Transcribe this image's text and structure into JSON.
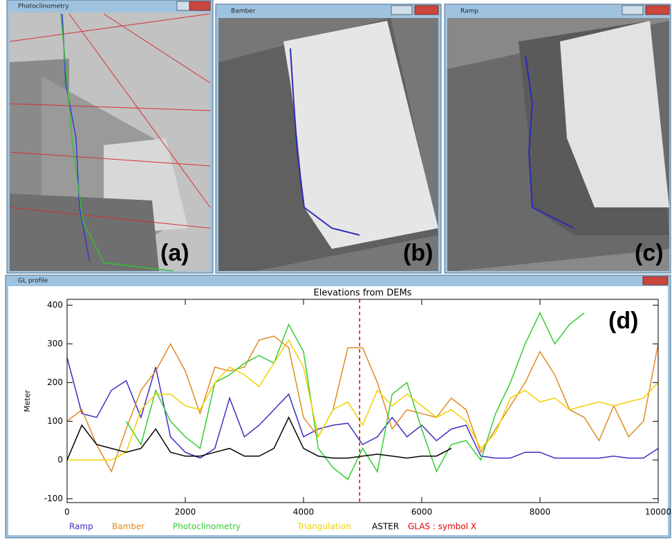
{
  "windows": [
    {
      "title": "Photoclinometry",
      "label": "(a)"
    },
    {
      "title": "Bamber",
      "label": "(b)"
    },
    {
      "title": "Ramp",
      "label": "(c)"
    },
    {
      "title": "GL profile"
    }
  ],
  "chart_data": {
    "type": "line",
    "title": "Elevations from DEMs",
    "y_label": "Meter",
    "panel_label": "(d)",
    "x": [
      0,
      250,
      500,
      750,
      1000,
      1250,
      1500,
      1750,
      2000,
      2250,
      2500,
      2750,
      3000,
      3250,
      3500,
      3750,
      4000,
      4250,
      4500,
      4750,
      5000,
      5250,
      5500,
      5750,
      6000,
      6250,
      6500,
      6750,
      7000,
      7250,
      7500,
      7750,
      8000,
      8250,
      8500,
      8750,
      9000,
      9250,
      9500,
      9750,
      10000
    ],
    "xlim": [
      0,
      10000
    ],
    "xticks": [
      0,
      2000,
      4000,
      6000,
      8000,
      10000
    ],
    "ylim": [
      -110,
      415
    ],
    "yticks": [
      -100,
      0,
      100,
      200,
      300,
      400
    ],
    "reference_line": {
      "x": 4950,
      "color": "#e00000"
    },
    "series": [
      {
        "name": "Ramp",
        "color": "#3b2fc0",
        "values": [
          265,
          120,
          110,
          180,
          205,
          110,
          240,
          60,
          20,
          5,
          30,
          160,
          60,
          90,
          130,
          170,
          60,
          80,
          90,
          95,
          40,
          60,
          110,
          60,
          90,
          50,
          80,
          90,
          10,
          5,
          5,
          20,
          20,
          5,
          5,
          5,
          5,
          10,
          5,
          5,
          30
        ]
      },
      {
        "name": "Bamber",
        "color": "#e08a1e",
        "values": [
          100,
          130,
          40,
          -30,
          80,
          180,
          230,
          300,
          230,
          120,
          240,
          230,
          240,
          310,
          320,
          290,
          110,
          60,
          130,
          290,
          290,
          200,
          80,
          130,
          120,
          110,
          160,
          130,
          20,
          80,
          140,
          200,
          280,
          220,
          130,
          110,
          50,
          140,
          60,
          100,
          300
        ]
      },
      {
        "name": "Photoclinometry",
        "color": "#33cc33",
        "values": [
          null,
          null,
          null,
          null,
          100,
          40,
          180,
          100,
          60,
          30,
          200,
          220,
          250,
          270,
          250,
          350,
          280,
          30,
          -20,
          -50,
          30,
          -30,
          170,
          200,
          80,
          -30,
          40,
          50,
          0,
          120,
          200,
          300,
          380,
          300,
          350,
          380,
          null,
          null,
          null,
          null,
          null
        ]
      },
      {
        "name": "Triangulation",
        "color": "#f0d000",
        "values": [
          0,
          0,
          0,
          0,
          20,
          130,
          170,
          170,
          140,
          130,
          200,
          240,
          220,
          190,
          250,
          310,
          240,
          60,
          130,
          150,
          90,
          180,
          140,
          170,
          140,
          110,
          130,
          100,
          30,
          70,
          160,
          180,
          150,
          160,
          130,
          140,
          150,
          140,
          150,
          160,
          200
        ]
      },
      {
        "name": "ASTER",
        "color": "#000000",
        "values": [
          0,
          90,
          40,
          30,
          20,
          30,
          80,
          20,
          10,
          10,
          20,
          30,
          10,
          10,
          30,
          110,
          30,
          10,
          5,
          5,
          10,
          15,
          10,
          5,
          10,
          10,
          30,
          null,
          null,
          null,
          null,
          null,
          null,
          null,
          null,
          null,
          null,
          null,
          null,
          null,
          null
        ]
      },
      {
        "name": "GLAS : symbol X",
        "color": "#e00000",
        "values": [
          null,
          null,
          null,
          null,
          null,
          null,
          null,
          null,
          null,
          null,
          null,
          null,
          null,
          null,
          null,
          null,
          null,
          null,
          null,
          null,
          null,
          null,
          null,
          null,
          null,
          null,
          null,
          null,
          null,
          null,
          null,
          null,
          null,
          null,
          null,
          null,
          null,
          null,
          null,
          null,
          null
        ]
      }
    ]
  }
}
